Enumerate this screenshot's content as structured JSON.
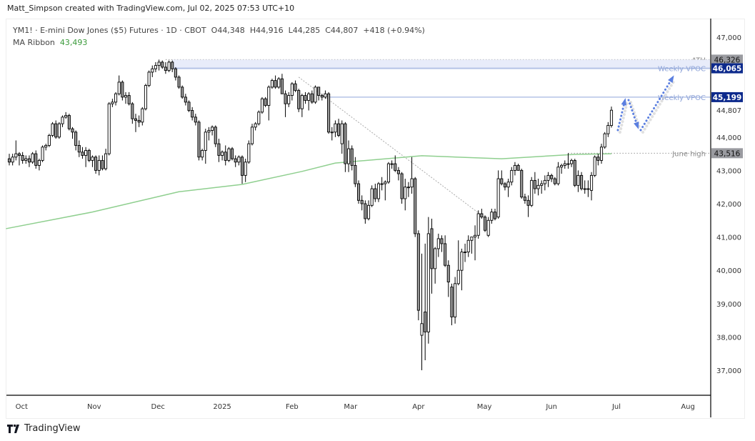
{
  "credit": "Matt_Simpson created with TradingView.com, Jul 02, 2025 07:53 UTC+10",
  "legend": {
    "symbol": "YM1! · E-mini Dow Jones ($5) Futures · 1D · CBOT",
    "open": "O44,348",
    "high": "H44,916",
    "low": "L44,285",
    "close": "C44,807",
    "change": "+418 (+0.94%)",
    "ma_label": "MA Ribbon",
    "ma_value": "43,493"
  },
  "brand": "TradingView",
  "colors": {
    "up": "#ffffff",
    "down": "#999999",
    "border": "#000000",
    "ma": "#8fcf8f",
    "level": "#b4c3e6",
    "level_box": "#0d2a8c",
    "gray_box": "#9a9ba0",
    "arrow": "#5b7fe0"
  },
  "chart_data": {
    "type": "candlestick",
    "ylim": [
      36300,
      47500
    ],
    "y_ticks": [
      47000,
      44000,
      43000,
      42000,
      41000,
      40000,
      39000,
      38000,
      37000
    ],
    "y_tick_labels": [
      "47,000",
      "44,000",
      "43,000",
      "42,000",
      "41,000",
      "40,000",
      "39,000",
      "38,000",
      "37,000"
    ],
    "x_ticks": [
      {
        "label": "Oct",
        "bar": 3.7
      },
      {
        "label": "Nov",
        "bar": 25.5
      },
      {
        "label": "Dec",
        "bar": 44.7
      },
      {
        "label": "2025",
        "bar": 64
      },
      {
        "label": "Feb",
        "bar": 85
      },
      {
        "label": "Mar",
        "bar": 102.6
      },
      {
        "label": "Apr",
        "bar": 123
      },
      {
        "label": "May",
        "bar": 142.8
      },
      {
        "label": "Jun",
        "bar": 163
      },
      {
        "label": "Jul",
        "bar": 182.5
      },
      {
        "label": "Aug",
        "bar": 204
      }
    ],
    "ohlc": [
      [
        43350,
        43500,
        43150,
        43250
      ],
      [
        43250,
        43500,
        43150,
        43400
      ],
      [
        43400,
        43900,
        43300,
        43500
      ],
      [
        43500,
        43550,
        43150,
        43450
      ],
      [
        43450,
        43550,
        43200,
        43300
      ],
      [
        43300,
        43450,
        43200,
        43350
      ],
      [
        43350,
        43450,
        43100,
        43250
      ],
      [
        43250,
        43550,
        43200,
        43500
      ],
      [
        43500,
        43600,
        43050,
        43150
      ],
      [
        43150,
        43350,
        43000,
        43300
      ],
      [
        43300,
        43750,
        43250,
        43700
      ],
      [
        43700,
        43800,
        43600,
        43750
      ],
      [
        43750,
        44100,
        43700,
        44050
      ],
      [
        44050,
        44450,
        44000,
        44400
      ],
      [
        44400,
        44500,
        43950,
        44000
      ],
      [
        44000,
        44450,
        43950,
        44400
      ],
      [
        44400,
        44650,
        44300,
        44600
      ],
      [
        44600,
        44750,
        44550,
        44650
      ],
      [
        44650,
        44700,
        44200,
        44250
      ],
      [
        44250,
        44300,
        43950,
        44150
      ],
      [
        44150,
        44200,
        43600,
        43750
      ],
      [
        43750,
        43900,
        43400,
        43550
      ],
      [
        43550,
        43700,
        43350,
        43450
      ],
      [
        43450,
        43700,
        43100,
        43600
      ],
      [
        43600,
        43650,
        43250,
        43300
      ],
      [
        43300,
        43450,
        43100,
        43400
      ],
      [
        43400,
        43450,
        42900,
        43000
      ],
      [
        43000,
        43450,
        42850,
        43300
      ],
      [
        43300,
        43450,
        43000,
        43050
      ],
      [
        43050,
        43650,
        43000,
        43500
      ],
      [
        43500,
        45050,
        43450,
        45000
      ],
      [
        45000,
        45150,
        44900,
        45050
      ],
      [
        45050,
        45350,
        44950,
        45300
      ],
      [
        45300,
        45850,
        45250,
        45650
      ],
      [
        45650,
        45700,
        45100,
        45200
      ],
      [
        45200,
        45350,
        45000,
        45250
      ],
      [
        45250,
        45350,
        44950,
        45000
      ],
      [
        45000,
        45050,
        44400,
        44550
      ],
      [
        44550,
        44700,
        44150,
        44500
      ],
      [
        44500,
        44650,
        44300,
        44450
      ],
      [
        44450,
        44900,
        44350,
        44850
      ],
      [
        44850,
        45600,
        44800,
        45550
      ],
      [
        45550,
        46000,
        45500,
        45950
      ],
      [
        45950,
        46150,
        45800,
        46050
      ],
      [
        46050,
        46250,
        45950,
        46150
      ],
      [
        46150,
        46326,
        46000,
        46250
      ],
      [
        46250,
        46300,
        46050,
        46100
      ],
      [
        46100,
        46250,
        45900,
        46000
      ],
      [
        46000,
        46300,
        45950,
        46250
      ],
      [
        46250,
        46300,
        45950,
        46050
      ],
      [
        46050,
        46100,
        45700,
        45800
      ],
      [
        45800,
        45850,
        45450,
        45500
      ],
      [
        45500,
        45550,
        45150,
        45200
      ],
      [
        45200,
        45300,
        44950,
        45050
      ],
      [
        45050,
        45100,
        44750,
        44800
      ],
      [
        44800,
        44900,
        44500,
        44600
      ],
      [
        44600,
        44700,
        44350,
        44450
      ],
      [
        44450,
        44500,
        43300,
        43400
      ],
      [
        43400,
        43650,
        43300,
        43600
      ],
      [
        43600,
        44250,
        43200,
        44150
      ],
      [
        44150,
        44300,
        43900,
        44200
      ],
      [
        44200,
        44350,
        44050,
        44300
      ],
      [
        44300,
        44350,
        43700,
        43800
      ],
      [
        43800,
        43950,
        43250,
        43450
      ],
      [
        43450,
        43600,
        43300,
        43550
      ],
      [
        43550,
        43750,
        43150,
        43300
      ],
      [
        43300,
        43700,
        43250,
        43650
      ],
      [
        43650,
        43700,
        43300,
        43350
      ],
      [
        43350,
        43450,
        43100,
        43250
      ],
      [
        43250,
        43450,
        43150,
        43400
      ],
      [
        43400,
        43450,
        42600,
        42850
      ],
      [
        42850,
        43350,
        42650,
        43250
      ],
      [
        43250,
        43900,
        43200,
        43800
      ],
      [
        43800,
        44400,
        43750,
        44300
      ],
      [
        44300,
        44450,
        44200,
        44400
      ],
      [
        44400,
        44800,
        44350,
        44750
      ],
      [
        44750,
        45200,
        44700,
        45150
      ],
      [
        45150,
        45200,
        44900,
        44950
      ],
      [
        44950,
        45550,
        44500,
        45500
      ],
      [
        45500,
        45750,
        45450,
        45700
      ],
      [
        45700,
        45850,
        45450,
        45500
      ],
      [
        45500,
        45800,
        45450,
        45750
      ],
      [
        45750,
        45900,
        45300,
        45300
      ],
      [
        45300,
        45400,
        44600,
        45000
      ],
      [
        45000,
        45350,
        44900,
        45250
      ],
      [
        45250,
        45650,
        45100,
        45600
      ],
      [
        45600,
        45700,
        45350,
        45400
      ],
      [
        45400,
        45450,
        44750,
        44850
      ],
      [
        44850,
        45300,
        44600,
        45250
      ],
      [
        45250,
        45350,
        45000,
        45100
      ],
      [
        45100,
        45350,
        44800,
        45300
      ],
      [
        45300,
        45400,
        45000,
        45050
      ],
      [
        45050,
        45550,
        45000,
        45500
      ],
      [
        45500,
        45500,
        45100,
        45250
      ],
      [
        45250,
        45300,
        45100,
        45200
      ],
      [
        45200,
        45400,
        45150,
        45300
      ],
      [
        45300,
        45350,
        44100,
        44150
      ],
      [
        44150,
        44300,
        43900,
        44150
      ],
      [
        44150,
        44500,
        44000,
        44400
      ],
      [
        44400,
        44550,
        44000,
        44050
      ],
      [
        43800,
        44500,
        43500,
        44400
      ],
      [
        44400,
        44450,
        42950,
        43200
      ],
      [
        43200,
        43900,
        42950,
        43650
      ],
      [
        43650,
        43750,
        43000,
        43150
      ],
      [
        43150,
        43400,
        42500,
        42600
      ],
      [
        42600,
        42700,
        42000,
        42100
      ],
      [
        42100,
        42250,
        41800,
        42000
      ],
      [
        42000,
        42100,
        41400,
        41550
      ],
      [
        41550,
        42100,
        41500,
        41950
      ],
      [
        41950,
        42550,
        41900,
        42450
      ],
      [
        42450,
        42600,
        42050,
        42150
      ],
      [
        42150,
        42650,
        42050,
        42600
      ],
      [
        42600,
        42800,
        42400,
        42600
      ],
      [
        42600,
        42700,
        42100,
        42650
      ],
      [
        42650,
        43250,
        42600,
        43200
      ],
      [
        43200,
        43300,
        43050,
        43200
      ],
      [
        43200,
        43450,
        42950,
        43000
      ],
      [
        43000,
        43100,
        42700,
        42900
      ],
      [
        42900,
        42950,
        42000,
        42150
      ],
      [
        42150,
        42750,
        41800,
        42500
      ],
      [
        42500,
        42650,
        42200,
        42500
      ],
      [
        42500,
        43400,
        42300,
        42750
      ],
      [
        42750,
        42800,
        41000,
        41100
      ],
      [
        41100,
        41200,
        38500,
        38800
      ],
      [
        38050,
        40500,
        37000,
        38400
      ],
      [
        38750,
        40800,
        37300,
        38150
      ],
      [
        38150,
        41600,
        37800,
        41100
      ],
      [
        41250,
        41550,
        39300,
        40050
      ],
      [
        40050,
        40700,
        39600,
        40650
      ],
      [
        40650,
        41100,
        40400,
        40950
      ],
      [
        40950,
        41050,
        40550,
        40800
      ],
      [
        40800,
        41050,
        40100,
        40150
      ],
      [
        40150,
        40300,
        39200,
        39650
      ],
      [
        39500,
        39600,
        38350,
        38600
      ],
      [
        38600,
        39800,
        38400,
        39600
      ],
      [
        39600,
        40900,
        39550,
        40000
      ],
      [
        40000,
        40650,
        39400,
        40550
      ],
      [
        40550,
        40800,
        40250,
        40550
      ],
      [
        40550,
        41050,
        40400,
        40900
      ],
      [
        40900,
        41000,
        40500,
        41000
      ],
      [
        41000,
        41350,
        40300,
        41050
      ],
      [
        41050,
        41800,
        40950,
        41700
      ],
      [
        41700,
        41850,
        41550,
        41600
      ],
      [
        41600,
        41650,
        41150,
        41200
      ],
      [
        41050,
        41600,
        41000,
        41500
      ],
      [
        41500,
        41850,
        41400,
        41750
      ],
      [
        41750,
        41850,
        41500,
        41550
      ],
      [
        41600,
        43000,
        41550,
        42750
      ],
      [
        42750,
        43000,
        42550,
        42600
      ],
      [
        42600,
        42650,
        42400,
        42500
      ],
      [
        42500,
        42750,
        42200,
        42650
      ],
      [
        42650,
        43100,
        42550,
        43000
      ],
      [
        43000,
        43250,
        42850,
        43150
      ],
      [
        43150,
        43200,
        43000,
        43000
      ],
      [
        43000,
        43050,
        42150,
        42200
      ],
      [
        42200,
        42300,
        42000,
        42100
      ],
      [
        42100,
        42250,
        41600,
        41950
      ],
      [
        41950,
        42800,
        41900,
        42700
      ],
      [
        42700,
        42950,
        42300,
        42450
      ],
      [
        42450,
        42750,
        42250,
        42550
      ],
      [
        42550,
        42700,
        42300,
        42600
      ],
      [
        42600,
        42850,
        42400,
        42700
      ],
      [
        42700,
        42950,
        42500,
        42850
      ],
      [
        42850,
        42900,
        42650,
        42750
      ],
      [
        42750,
        42800,
        42550,
        42600
      ],
      [
        42600,
        43250,
        42550,
        43100
      ],
      [
        43100,
        43200,
        42900,
        43150
      ],
      [
        43150,
        43300,
        43050,
        43200
      ],
      [
        43200,
        43516,
        43050,
        43200
      ],
      [
        43200,
        43350,
        43100,
        43300
      ],
      [
        43300,
        43350,
        42500,
        42550
      ],
      [
        42550,
        43000,
        42350,
        42850
      ],
      [
        42850,
        42950,
        42400,
        42450
      ],
      [
        42450,
        42700,
        42300,
        42450
      ],
      [
        42450,
        42700,
        42200,
        42450
      ],
      [
        42400,
        42950,
        42100,
        42850
      ],
      [
        42850,
        43450,
        42800,
        43400
      ],
      [
        43400,
        43500,
        43150,
        43300
      ],
      [
        43300,
        43800,
        43200,
        43700
      ],
      [
        43700,
        44150,
        43650,
        44100
      ],
      [
        44100,
        44450,
        44000,
        44350
      ],
      [
        44348,
        44916,
        44285,
        44807
      ]
    ],
    "ma_ribbon": [
      [
        -1,
        41250
      ],
      [
        25,
        41750
      ],
      [
        51,
        42360
      ],
      [
        70,
        42580
      ],
      [
        88,
        42970
      ],
      [
        98,
        43220
      ],
      [
        124,
        43440
      ],
      [
        148,
        43350
      ],
      [
        170,
        43480
      ],
      [
        181,
        43500
      ]
    ],
    "levels": [
      {
        "name": "ATH",
        "value": 46326,
        "label": "ATH",
        "price_label": "46,326",
        "style": "dotted",
        "from_bar": 47
      },
      {
        "name": "weekly-vpoc-1",
        "value": 46065,
        "label": "Weekly VPOC",
        "price_label": "46,065",
        "style": "band",
        "from_bar": 49
      },
      {
        "name": "weekly-vpoc-2",
        "value": 45199,
        "label": "Weekly VPOC",
        "price_label": "45,199",
        "style": "solid",
        "from_bar": 96
      },
      {
        "name": "june-high",
        "value": 43516,
        "label": "June high",
        "price_label": "43,516",
        "style": "dotted",
        "from_bar": 168
      }
    ],
    "last_price_label": "44,807",
    "trendline": [
      [
        87,
        45800
      ],
      [
        142,
        41650
      ]
    ]
  }
}
